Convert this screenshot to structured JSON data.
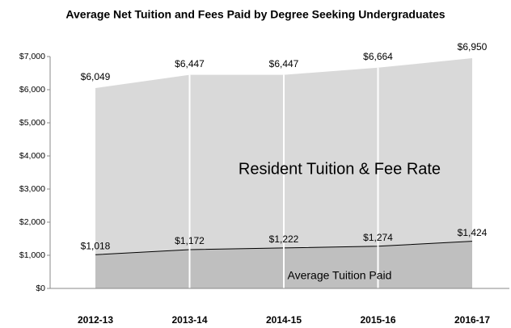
{
  "chart_data": {
    "type": "area",
    "title": "Average Net Tuition and Fees Paid by Degree Seeking Undergraduates",
    "categories": [
      "2012-13",
      "2013-14",
      "2014-15",
      "2015-16",
      "2016-17"
    ],
    "series": [
      {
        "name": "Resident Tuition & Fee Rate",
        "color": "#d9d9d9",
        "values": [
          6049,
          6447,
          6447,
          6664,
          6950
        ],
        "value_labels": [
          "$6,049",
          "$6,447",
          "$6,447",
          "$6,664",
          "$6,950"
        ]
      },
      {
        "name": "Average Tuition Paid",
        "color": "#bfbfbf",
        "line_color": "#000000",
        "values": [
          1018,
          1172,
          1222,
          1274,
          1424
        ],
        "value_labels": [
          "$1,018",
          "$1,172",
          "$1,222",
          "$1,274",
          "$1,424"
        ]
      }
    ],
    "ylim": [
      0,
      7000
    ],
    "yticks": [
      {
        "value": 0,
        "label": "$0"
      },
      {
        "value": 1000,
        "label": "$1,000"
      },
      {
        "value": 2000,
        "label": "$2,000"
      },
      {
        "value": 3000,
        "label": "$3,000"
      },
      {
        "value": 4000,
        "label": "$4,000"
      },
      {
        "value": 5000,
        "label": "$5,000"
      },
      {
        "value": 6000,
        "label": "$6,000"
      },
      {
        "value": 7000,
        "label": "$7,000"
      }
    ]
  }
}
